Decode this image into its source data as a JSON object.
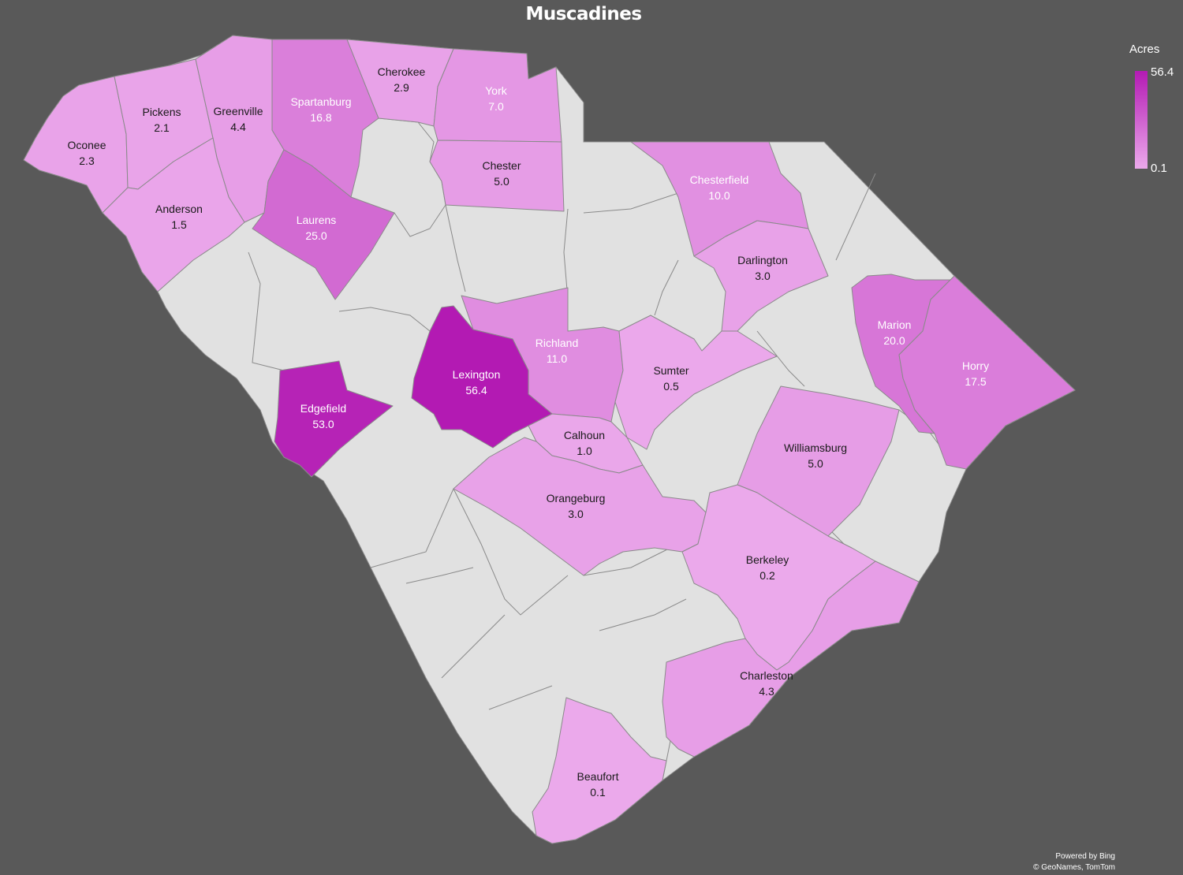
{
  "title": "Muscadines",
  "legend": {
    "title": "Acres",
    "max_label": "56.4",
    "min_label": "0.1",
    "min": 0.1,
    "max": 56.4,
    "color_low": "#EBA9EB",
    "color_high": "#B31AB3",
    "no_data_color": "#E1E1E1",
    "background": "#595959"
  },
  "attribution": {
    "powered_by": "Powered by Bing",
    "copyright": "© GeoNames, TomTom"
  },
  "counties": [
    {
      "id": "oconee",
      "name": "Oconee",
      "value_label": "2.3",
      "value": 2.3
    },
    {
      "id": "pickens",
      "name": "Pickens",
      "value_label": "2.1",
      "value": 2.1
    },
    {
      "id": "greenville",
      "name": "Greenville",
      "value_label": "4.4",
      "value": 4.4
    },
    {
      "id": "spartanburg",
      "name": "Spartanburg",
      "value_label": "16.8",
      "value": 16.8
    },
    {
      "id": "cherokee",
      "name": "Cherokee",
      "value_label": "2.9",
      "value": 2.9
    },
    {
      "id": "york",
      "name": "York",
      "value_label": "7.0",
      "value": 7.0
    },
    {
      "id": "chester",
      "name": "Chester",
      "value_label": "5.0",
      "value": 5.0
    },
    {
      "id": "chesterfield",
      "name": "Chesterfield",
      "value_label": "10.0",
      "value": 10.0
    },
    {
      "id": "anderson",
      "name": "Anderson",
      "value_label": "1.5",
      "value": 1.5
    },
    {
      "id": "laurens",
      "name": "Laurens",
      "value_label": "25.0",
      "value": 25.0
    },
    {
      "id": "darlington",
      "name": "Darlington",
      "value_label": "3.0",
      "value": 3.0
    },
    {
      "id": "marion",
      "name": "Marion",
      "value_label": "20.0",
      "value": 20.0
    },
    {
      "id": "horry",
      "name": "Horry",
      "value_label": "17.5",
      "value": 17.5
    },
    {
      "id": "richland",
      "name": "Richland",
      "value_label": "11.0",
      "value": 11.0
    },
    {
      "id": "sumter",
      "name": "Sumter",
      "value_label": "0.5",
      "value": 0.5
    },
    {
      "id": "lexington",
      "name": "Lexington",
      "value_label": "56.4",
      "value": 56.4
    },
    {
      "id": "edgefield",
      "name": "Edgefield",
      "value_label": "53.0",
      "value": 53.0
    },
    {
      "id": "calhoun",
      "name": "Calhoun",
      "value_label": "1.0",
      "value": 1.0
    },
    {
      "id": "williamsburg",
      "name": "Williamsburg",
      "value_label": "5.0",
      "value": 5.0
    },
    {
      "id": "orangeburg",
      "name": "Orangeburg",
      "value_label": "3.0",
      "value": 3.0
    },
    {
      "id": "berkeley",
      "name": "Berkeley",
      "value_label": "0.2",
      "value": 0.2
    },
    {
      "id": "charleston",
      "name": "Charleston",
      "value_label": "4.3",
      "value": 4.3
    },
    {
      "id": "beaufort",
      "name": "Beaufort",
      "value_label": "0.1",
      "value": 0.1
    }
  ]
}
